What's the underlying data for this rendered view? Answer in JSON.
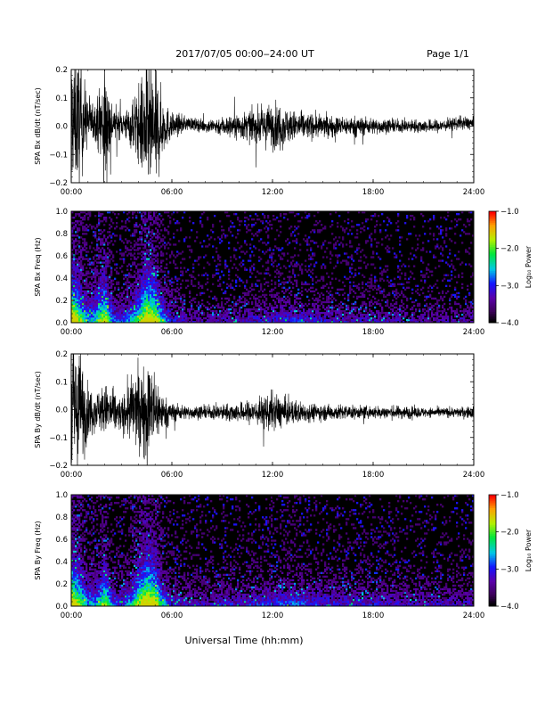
{
  "header": {
    "title": "2017/07/05  00:00‒24:00 UT",
    "page": "Page 1/1"
  },
  "footer": {
    "xlabel": "Universal Time (hh:mm)"
  },
  "chart_data": [
    {
      "type": "line",
      "ylabel": "SPA Bx dB/dt (nT/sec)",
      "xlim": [
        0,
        24
      ],
      "ylim": [
        -0.2,
        0.2
      ],
      "x_ticks": [
        "00:00",
        "06:00",
        "12:00",
        "18:00",
        "24:00"
      ],
      "y_ticks": [
        "−0.2",
        "−0.1",
        "0.0",
        "0.1",
        "0.2"
      ],
      "envelope": {
        "hours": [
          0,
          0.5,
          1,
          1.5,
          2,
          2.5,
          3,
          3.5,
          4,
          4.5,
          5,
          5.5,
          6,
          7,
          8,
          9,
          10,
          11,
          12,
          12.5,
          13,
          14,
          15,
          16,
          17,
          18,
          19,
          20,
          21,
          22,
          23,
          24
        ],
        "amplitude": [
          0.2,
          0.2,
          0.07,
          0.06,
          0.2,
          0.05,
          0.04,
          0.06,
          0.12,
          0.2,
          0.2,
          0.08,
          0.04,
          0.02,
          0.02,
          0.03,
          0.04,
          0.05,
          0.07,
          0.07,
          0.05,
          0.04,
          0.035,
          0.03,
          0.03,
          0.025,
          0.02,
          0.02,
          0.02,
          0.02,
          0.02,
          0.02
        ],
        "offset": [
          0.03,
          0.02,
          0.02,
          0.02,
          0.0,
          0.01,
          0.01,
          0.0,
          0.0,
          -0.01,
          -0.02,
          0.0,
          0.0,
          0.01,
          0.0,
          0.0,
          0.0,
          0.0,
          0.0,
          0.0,
          0.0,
          0.0,
          0.0,
          0.0,
          0.0,
          0.0,
          0.0,
          0.0,
          0.0,
          0.0,
          0.01,
          0.01
        ]
      }
    },
    {
      "type": "heatmap",
      "ylabel": "SPA Bx Freq (Hz)",
      "xlim": [
        0,
        24
      ],
      "ylim": [
        0,
        1.0
      ],
      "x_ticks": [
        "00:00",
        "06:00",
        "12:00",
        "18:00",
        "24:00"
      ],
      "y_ticks": [
        "0.0",
        "0.2",
        "0.4",
        "0.6",
        "0.8",
        "1.0"
      ],
      "colorbar": {
        "label": "Log₁₀ Power",
        "range": [
          -4.0,
          -1.0
        ],
        "ticks": [
          "−1.0",
          "−2.0",
          "−3.0",
          "−4.0"
        ]
      },
      "activity": {
        "hours": [
          0,
          0.5,
          1,
          1.5,
          2,
          2.5,
          3,
          3.5,
          4,
          4.5,
          5,
          5.5,
          6,
          8,
          10,
          12,
          13,
          14,
          16,
          18,
          20,
          22,
          24
        ],
        "level": [
          1.0,
          0.8,
          0.5,
          0.6,
          0.9,
          0.4,
          0.35,
          0.5,
          0.7,
          1.0,
          0.9,
          0.5,
          0.3,
          0.2,
          0.25,
          0.3,
          0.35,
          0.3,
          0.25,
          0.25,
          0.2,
          0.2,
          0.2
        ]
      }
    },
    {
      "type": "line",
      "ylabel": "SPA By dB/dt (nT/sec)",
      "xlim": [
        0,
        24
      ],
      "ylim": [
        -0.2,
        0.2
      ],
      "x_ticks": [
        "00:00",
        "06:00",
        "12:00",
        "18:00",
        "24:00"
      ],
      "y_ticks": [
        "−0.2",
        "−0.1",
        "0.0",
        "0.1",
        "0.2"
      ],
      "envelope": {
        "hours": [
          0,
          0.5,
          1,
          1.5,
          2,
          2.5,
          3,
          3.5,
          4,
          4.5,
          5,
          5.5,
          6,
          7,
          8,
          9,
          10,
          11,
          12,
          12.5,
          13,
          14,
          15,
          16,
          17,
          18,
          19,
          20,
          21,
          22,
          23,
          24
        ],
        "amplitude": [
          0.2,
          0.2,
          0.08,
          0.06,
          0.08,
          0.07,
          0.05,
          0.1,
          0.12,
          0.15,
          0.12,
          0.05,
          0.03,
          0.02,
          0.02,
          0.025,
          0.03,
          0.04,
          0.06,
          0.05,
          0.04,
          0.03,
          0.025,
          0.025,
          0.02,
          0.02,
          0.02,
          0.02,
          0.015,
          0.015,
          0.015,
          0.02
        ],
        "offset": [
          0.0,
          0.0,
          -0.01,
          0.0,
          0.0,
          -0.01,
          -0.02,
          0.0,
          0.0,
          0.0,
          0.0,
          -0.01,
          -0.01,
          -0.01,
          -0.01,
          -0.01,
          -0.01,
          -0.01,
          -0.01,
          -0.01,
          -0.01,
          -0.01,
          -0.01,
          -0.01,
          -0.01,
          -0.01,
          -0.01,
          -0.01,
          -0.01,
          -0.01,
          -0.01,
          -0.01
        ]
      }
    },
    {
      "type": "heatmap",
      "ylabel": "SPA By Freq (Hz)",
      "xlim": [
        0,
        24
      ],
      "ylim": [
        0,
        1.0
      ],
      "x_ticks": [
        "00:00",
        "06:00",
        "12:00",
        "18:00",
        "24:00"
      ],
      "y_ticks": [
        "0.0",
        "0.2",
        "0.4",
        "0.6",
        "0.8",
        "1.0"
      ],
      "colorbar": {
        "label": "Log₁₀ Power",
        "range": [
          -4.0,
          -1.0
        ],
        "ticks": [
          "−1.0",
          "−2.0",
          "−3.0",
          "−4.0"
        ]
      },
      "activity": {
        "hours": [
          0,
          0.5,
          1,
          1.5,
          2,
          2.5,
          3,
          3.5,
          4,
          4.5,
          5,
          5.5,
          6,
          8,
          10,
          12,
          13,
          14,
          16,
          18,
          20,
          22,
          24
        ],
        "level": [
          1.0,
          0.8,
          0.5,
          0.5,
          0.8,
          0.4,
          0.35,
          0.5,
          0.8,
          1.0,
          0.9,
          0.5,
          0.3,
          0.25,
          0.3,
          0.35,
          0.4,
          0.35,
          0.3,
          0.3,
          0.25,
          0.25,
          0.25
        ]
      }
    }
  ]
}
